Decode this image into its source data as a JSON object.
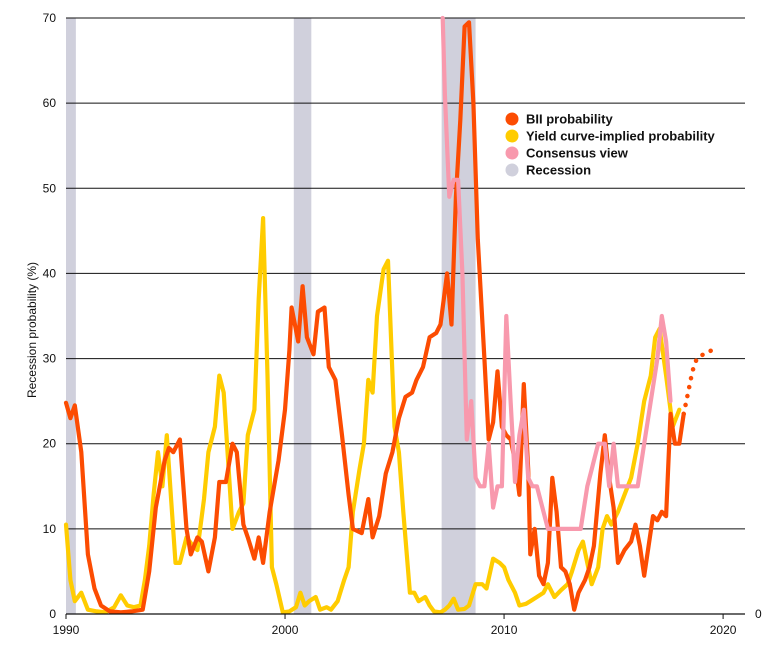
{
  "chart_data": {
    "type": "line",
    "title": "",
    "xlabel": "",
    "ylabel": "Recession probability (%)",
    "xlim": [
      1990,
      2021
    ],
    "ylim": [
      0,
      70
    ],
    "x_ticks": [
      "1990",
      "2000",
      "2010",
      "2020"
    ],
    "y_ticks": [
      "0",
      "10",
      "20",
      "30",
      "40",
      "50",
      "60",
      "70"
    ],
    "extra_right_label": "0",
    "grid": "horizontal",
    "legend": {
      "placement": "top-right"
    },
    "recessions": [
      [
        1990.0,
        1990.45
      ],
      [
        2000.4,
        2001.2
      ],
      [
        2007.15,
        2008.7
      ]
    ],
    "legend_entries": [
      {
        "label": "BII probability",
        "color": "#fc4c02"
      },
      {
        "label": "Yield curve-implied  probability",
        "color": "#ffcc00"
      },
      {
        "label": "Consensus view",
        "color": "#f899ad"
      },
      {
        "label": "Recession",
        "color": "#d0d0dc"
      }
    ],
    "series": [
      {
        "name": "BII probability",
        "color": "#fc4c02",
        "points": [
          [
            1990.0,
            24.8
          ],
          [
            1990.2,
            23.0
          ],
          [
            1990.4,
            24.5
          ],
          [
            1990.7,
            19.0
          ],
          [
            1991.0,
            7.0
          ],
          [
            1991.3,
            3.0
          ],
          [
            1991.6,
            1.0
          ],
          [
            1992.0,
            0.3
          ],
          [
            1992.5,
            0.2
          ],
          [
            1993.0,
            0.3
          ],
          [
            1993.5,
            0.5
          ],
          [
            1993.8,
            5.0
          ],
          [
            1994.1,
            12.5
          ],
          [
            1994.5,
            18.0
          ],
          [
            1994.7,
            19.5
          ],
          [
            1994.9,
            19.0
          ],
          [
            1995.2,
            20.5
          ],
          [
            1995.5,
            10.0
          ],
          [
            1995.7,
            7.0
          ],
          [
            1996.0,
            9.0
          ],
          [
            1996.2,
            8.5
          ],
          [
            1996.5,
            5.0
          ],
          [
            1996.8,
            9.0
          ],
          [
            1997.0,
            15.5
          ],
          [
            1997.3,
            15.5
          ],
          [
            1997.6,
            20.0
          ],
          [
            1997.8,
            19.0
          ],
          [
            1998.1,
            10.5
          ],
          [
            1998.3,
            9.0
          ],
          [
            1998.6,
            6.5
          ],
          [
            1998.8,
            9.0
          ],
          [
            1999.0,
            6.0
          ],
          [
            1999.3,
            12.0
          ],
          [
            1999.7,
            18.0
          ],
          [
            2000.0,
            24.0
          ],
          [
            2000.2,
            31.0
          ],
          [
            2000.3,
            36.0
          ],
          [
            2000.6,
            32.0
          ],
          [
            2000.8,
            38.5
          ],
          [
            2001.0,
            32.5
          ],
          [
            2001.3,
            30.5
          ],
          [
            2001.5,
            35.5
          ],
          [
            2001.8,
            36.0
          ],
          [
            2002.0,
            29.0
          ],
          [
            2002.3,
            27.5
          ],
          [
            2002.6,
            21.0
          ],
          [
            2002.9,
            14.0
          ],
          [
            2003.1,
            10.0
          ],
          [
            2003.5,
            9.5
          ],
          [
            2003.8,
            13.5
          ],
          [
            2004.0,
            9.0
          ],
          [
            2004.3,
            11.5
          ],
          [
            2004.6,
            16.5
          ],
          [
            2004.9,
            19.0
          ],
          [
            2005.2,
            23.0
          ],
          [
            2005.5,
            25.5
          ],
          [
            2005.8,
            26.0
          ],
          [
            2006.0,
            27.5
          ],
          [
            2006.3,
            29.0
          ],
          [
            2006.6,
            32.5
          ],
          [
            2006.9,
            33.0
          ],
          [
            2007.1,
            34.0
          ],
          [
            2007.4,
            40.0
          ],
          [
            2007.6,
            34.0
          ],
          [
            2007.8,
            49.0
          ],
          [
            2008.0,
            58.0
          ],
          [
            2008.2,
            69.0
          ],
          [
            2008.4,
            69.5
          ],
          [
            2008.6,
            60.0
          ],
          [
            2008.8,
            44.0
          ],
          [
            2009.1,
            30.0
          ],
          [
            2009.3,
            20.5
          ],
          [
            2009.5,
            22.5
          ],
          [
            2009.7,
            28.5
          ],
          [
            2009.9,
            22.0
          ],
          [
            2010.1,
            21.0
          ],
          [
            2010.3,
            20.5
          ],
          [
            2010.5,
            18.0
          ],
          [
            2010.7,
            14.0
          ],
          [
            2010.9,
            27.0
          ],
          [
            2011.1,
            17.0
          ],
          [
            2011.2,
            7.0
          ],
          [
            2011.4,
            10.0
          ],
          [
            2011.6,
            4.5
          ],
          [
            2011.8,
            3.5
          ],
          [
            2012.0,
            6.0
          ],
          [
            2012.2,
            16.0
          ],
          [
            2012.4,
            12.0
          ],
          [
            2012.6,
            5.5
          ],
          [
            2012.8,
            5.0
          ],
          [
            2013.0,
            3.5
          ],
          [
            2013.2,
            0.5
          ],
          [
            2013.4,
            2.5
          ],
          [
            2013.7,
            4.0
          ],
          [
            2013.9,
            5.5
          ],
          [
            2014.1,
            8.0
          ],
          [
            2014.4,
            16.5
          ],
          [
            2014.6,
            21.0
          ],
          [
            2014.8,
            16.0
          ],
          [
            2015.0,
            12.5
          ],
          [
            2015.2,
            6.0
          ],
          [
            2015.5,
            7.5
          ],
          [
            2015.8,
            8.5
          ],
          [
            2016.0,
            10.5
          ],
          [
            2016.2,
            8.0
          ],
          [
            2016.4,
            4.5
          ],
          [
            2016.6,
            8.0
          ],
          [
            2016.8,
            11.5
          ],
          [
            2017.0,
            11.0
          ],
          [
            2017.2,
            12.0
          ],
          [
            2017.4,
            11.5
          ],
          [
            2017.6,
            23.5
          ],
          [
            2017.8,
            20.0
          ],
          [
            2018.0,
            20.0
          ],
          [
            2018.2,
            23.5
          ]
        ]
      },
      {
        "name": "Yield curve-implied  probability",
        "color": "#ffcc00",
        "points": [
          [
            1990.0,
            10.5
          ],
          [
            1990.2,
            4.0
          ],
          [
            1990.4,
            1.5
          ],
          [
            1990.7,
            2.5
          ],
          [
            1991.0,
            0.5
          ],
          [
            1991.4,
            0.3
          ],
          [
            1991.8,
            0.2
          ],
          [
            1992.2,
            0.8
          ],
          [
            1992.5,
            2.2
          ],
          [
            1992.8,
            1.0
          ],
          [
            1993.1,
            0.8
          ],
          [
            1993.4,
            1.0
          ],
          [
            1993.6,
            4.0
          ],
          [
            1993.8,
            8.0
          ],
          [
            1994.0,
            14.0
          ],
          [
            1994.2,
            19.0
          ],
          [
            1994.4,
            15.0
          ],
          [
            1994.6,
            21.0
          ],
          [
            1994.8,
            13.5
          ],
          [
            1995.0,
            6.0
          ],
          [
            1995.2,
            6.0
          ],
          [
            1995.5,
            9.0
          ],
          [
            1995.8,
            8.0
          ],
          [
            1996.0,
            7.5
          ],
          [
            1996.3,
            13.5
          ],
          [
            1996.5,
            19.0
          ],
          [
            1996.8,
            22.0
          ],
          [
            1997.0,
            28.0
          ],
          [
            1997.2,
            26.0
          ],
          [
            1997.4,
            18.0
          ],
          [
            1997.6,
            10.0
          ],
          [
            1997.9,
            12.0
          ],
          [
            1998.1,
            13.0
          ],
          [
            1998.3,
            21.0
          ],
          [
            1998.6,
            24.0
          ],
          [
            1998.8,
            37.0
          ],
          [
            1999.0,
            46.5
          ],
          [
            1999.2,
            28.0
          ],
          [
            1999.4,
            5.5
          ],
          [
            1999.6,
            3.5
          ],
          [
            1999.9,
            0.2
          ],
          [
            2000.2,
            0.3
          ],
          [
            2000.5,
            0.8
          ],
          [
            2000.7,
            2.5
          ],
          [
            2000.9,
            1.0
          ],
          [
            2001.1,
            1.5
          ],
          [
            2001.4,
            2.0
          ],
          [
            2001.6,
            0.5
          ],
          [
            2001.9,
            0.8
          ],
          [
            2002.1,
            0.5
          ],
          [
            2002.4,
            1.5
          ],
          [
            2002.7,
            4.0
          ],
          [
            2002.9,
            5.5
          ],
          [
            2003.1,
            12.0
          ],
          [
            2003.4,
            17.0
          ],
          [
            2003.6,
            20.0
          ],
          [
            2003.8,
            27.5
          ],
          [
            2004.0,
            26.0
          ],
          [
            2004.2,
            35.0
          ],
          [
            2004.5,
            40.5
          ],
          [
            2004.7,
            41.5
          ],
          [
            2005.0,
            22.0
          ],
          [
            2005.2,
            19.0
          ],
          [
            2005.4,
            12.0
          ],
          [
            2005.7,
            2.5
          ],
          [
            2005.9,
            2.5
          ],
          [
            2006.1,
            1.5
          ],
          [
            2006.4,
            2.0
          ],
          [
            2006.6,
            1.0
          ],
          [
            2006.8,
            0.3
          ],
          [
            2007.1,
            0.2
          ],
          [
            2007.3,
            0.5
          ],
          [
            2007.5,
            1.0
          ],
          [
            2007.7,
            1.8
          ],
          [
            2007.9,
            0.5
          ],
          [
            2008.2,
            0.6
          ],
          [
            2008.4,
            1.0
          ],
          [
            2008.7,
            3.5
          ],
          [
            2009.0,
            3.5
          ],
          [
            2009.2,
            3.0
          ],
          [
            2009.5,
            6.5
          ],
          [
            2009.8,
            6.0
          ],
          [
            2010.0,
            5.5
          ],
          [
            2010.2,
            4.0
          ],
          [
            2010.5,
            2.5
          ],
          [
            2010.7,
            1.0
          ],
          [
            2011.0,
            1.2
          ],
          [
            2011.2,
            1.5
          ],
          [
            2011.5,
            2.0
          ],
          [
            2011.8,
            2.5
          ],
          [
            2012.0,
            3.5
          ],
          [
            2012.3,
            2.0
          ],
          [
            2012.6,
            2.8
          ],
          [
            2012.9,
            3.5
          ],
          [
            2013.1,
            5.0
          ],
          [
            2013.4,
            7.5
          ],
          [
            2013.6,
            8.5
          ],
          [
            2013.8,
            6.0
          ],
          [
            2014.0,
            3.5
          ],
          [
            2014.3,
            5.5
          ],
          [
            2014.5,
            10.0
          ],
          [
            2014.7,
            11.5
          ],
          [
            2014.9,
            10.5
          ],
          [
            2015.2,
            12.0
          ],
          [
            2015.5,
            14.0
          ],
          [
            2015.8,
            16.0
          ],
          [
            2016.1,
            20.0
          ],
          [
            2016.4,
            25.0
          ],
          [
            2016.7,
            28.0
          ],
          [
            2016.9,
            32.5
          ],
          [
            2017.1,
            33.5
          ],
          [
            2017.4,
            28.0
          ],
          [
            2017.7,
            22.0
          ],
          [
            2018.0,
            24.0
          ]
        ]
      },
      {
        "name": "Consensus view",
        "color": "#f899ad",
        "points": [
          [
            2007.2,
            70.0
          ],
          [
            2007.3,
            61.0
          ],
          [
            2007.5,
            49.0
          ],
          [
            2007.7,
            51.0
          ],
          [
            2007.9,
            51.0
          ],
          [
            2008.1,
            40.0
          ],
          [
            2008.3,
            20.5
          ],
          [
            2008.5,
            25.0
          ],
          [
            2008.7,
            16.0
          ],
          [
            2008.9,
            15.0
          ],
          [
            2009.1,
            15.0
          ],
          [
            2009.3,
            20.0
          ],
          [
            2009.5,
            12.5
          ],
          [
            2009.7,
            15.0
          ],
          [
            2009.9,
            15.0
          ],
          [
            2010.1,
            35.0
          ],
          [
            2010.3,
            25.0
          ],
          [
            2010.5,
            15.5
          ],
          [
            2010.7,
            21.0
          ],
          [
            2010.9,
            24.0
          ],
          [
            2011.1,
            16.0
          ],
          [
            2011.3,
            15.0
          ],
          [
            2011.5,
            15.0
          ],
          [
            2011.7,
            13.0
          ],
          [
            2012.0,
            10.0
          ],
          [
            2012.5,
            10.0
          ],
          [
            2013.0,
            10.0
          ],
          [
            2013.5,
            10.0
          ],
          [
            2013.8,
            15.0
          ],
          [
            2014.0,
            17.0
          ],
          [
            2014.3,
            20.0
          ],
          [
            2014.6,
            20.0
          ],
          [
            2014.8,
            15.0
          ],
          [
            2015.0,
            20.0
          ],
          [
            2015.2,
            15.0
          ],
          [
            2015.5,
            15.0
          ],
          [
            2015.8,
            15.0
          ],
          [
            2016.1,
            15.0
          ],
          [
            2016.4,
            20.0
          ],
          [
            2016.7,
            25.0
          ],
          [
            2017.0,
            30.0
          ],
          [
            2017.2,
            35.0
          ],
          [
            2017.4,
            32.0
          ],
          [
            2017.6,
            25.0
          ]
        ]
      },
      {
        "name": "",
        "color": "#fc4c02",
        "dotted": true,
        "points": [
          [
            2018.2,
            23.5
          ],
          [
            2018.4,
            26.0
          ],
          [
            2018.6,
            28.5
          ],
          [
            2018.8,
            30.0
          ],
          [
            2019.1,
            30.5
          ],
          [
            2019.5,
            31.0
          ]
        ]
      }
    ]
  }
}
